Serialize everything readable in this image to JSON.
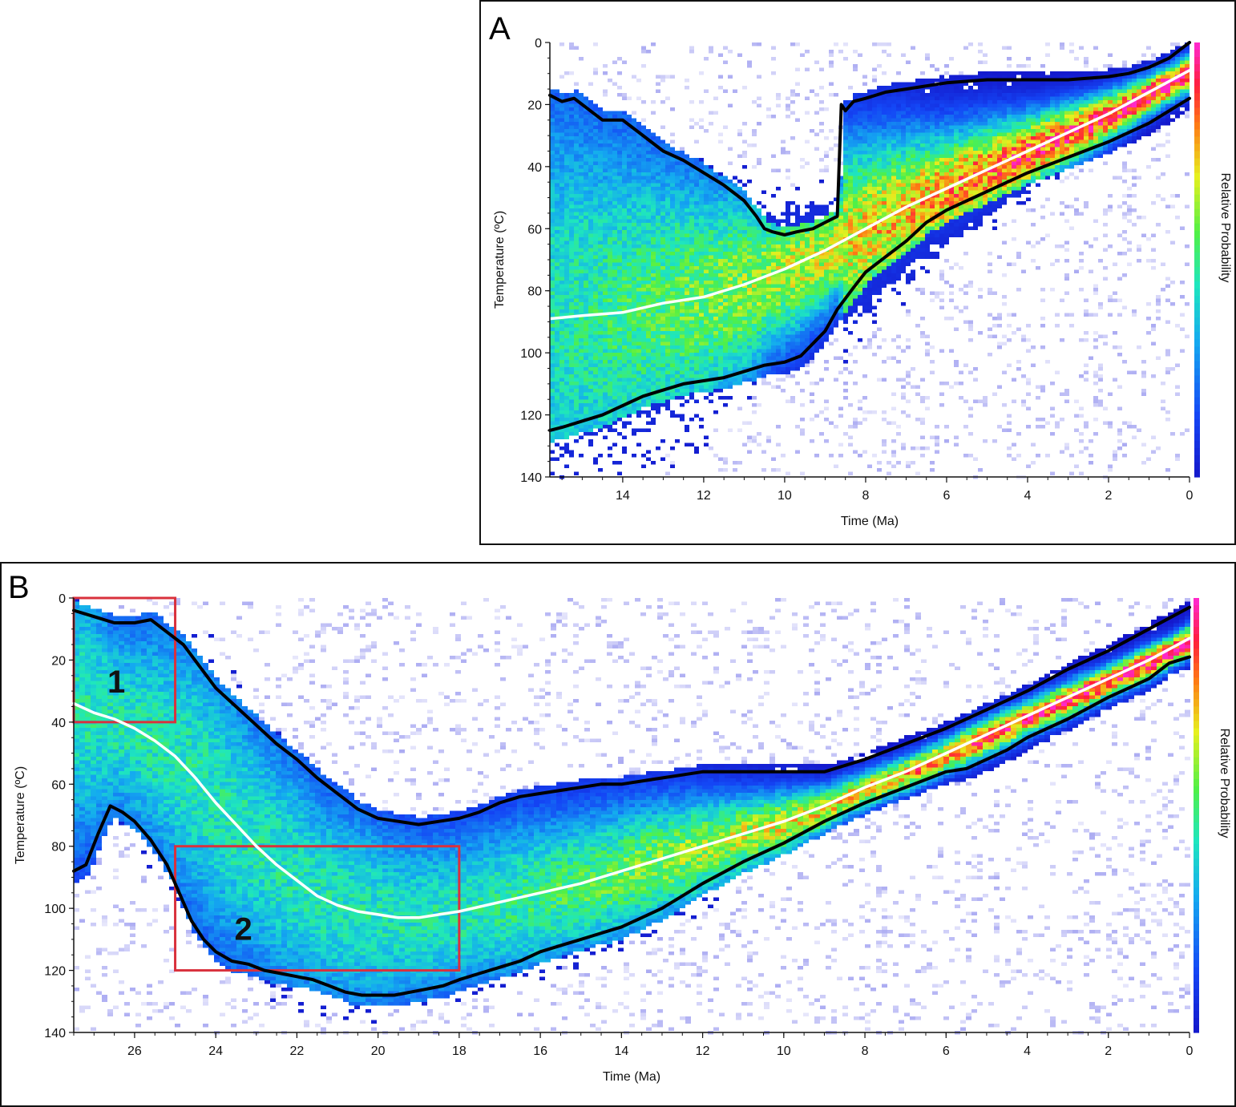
{
  "chart_data": [
    {
      "panel_label": "A",
      "type": "heatmap",
      "xlabel": "Time (Ma)",
      "ylabel": "Temperature (ºC)",
      "colorbar_label": "Relative Probability",
      "xlim": [
        15.8,
        0
      ],
      "ylim": [
        0,
        140
      ],
      "x_ticks": [
        14,
        12,
        10,
        8,
        6,
        4,
        2,
        0
      ],
      "y_ticks": [
        0,
        20,
        40,
        60,
        80,
        100,
        120,
        140
      ],
      "x_tick_labels": [
        "14",
        "12",
        "10",
        "8",
        "6",
        "4",
        "2",
        "0"
      ],
      "y_tick_labels": [
        "0",
        "20",
        "40",
        "60",
        "80",
        "100",
        "120",
        "140"
      ],
      "series": [
        {
          "name": "upper envelope",
          "color": "#000000",
          "x": [
            15.8,
            15.5,
            15.2,
            14.8,
            14.5,
            14.0,
            13.5,
            13.0,
            12.5,
            12.0,
            11.5,
            11.0,
            10.7,
            10.5,
            10.3,
            10.0,
            9.7,
            9.3,
            9.0,
            8.7,
            8.6,
            8.5,
            8.3,
            8.0,
            7.5,
            7.0,
            6.5,
            6.0,
            5.0,
            4.0,
            3.0,
            2.0,
            1.5,
            1.0,
            0.5,
            0.2,
            0
          ],
          "y": [
            17,
            19,
            18,
            22,
            25,
            25,
            30,
            35,
            38,
            42,
            46,
            51,
            56,
            60,
            61,
            62,
            61,
            60,
            58,
            56,
            20,
            22,
            19,
            18,
            16,
            15,
            14,
            13,
            12,
            12,
            12,
            11,
            10,
            8,
            5,
            2,
            0
          ]
        },
        {
          "name": "mean path",
          "color": "#ffffff",
          "x": [
            15.8,
            15.0,
            14.0,
            13.0,
            12.0,
            11.0,
            10.0,
            9.0,
            8.0,
            7.0,
            6.0,
            5.0,
            4.0,
            3.0,
            2.0,
            1.0,
            0
          ],
          "y": [
            89,
            88,
            87,
            84,
            82,
            78,
            73,
            67,
            60,
            53,
            47,
            41,
            35,
            29,
            23,
            16,
            9
          ]
        },
        {
          "name": "lower envelope",
          "color": "#000000",
          "x": [
            15.8,
            15.5,
            15.0,
            14.5,
            14.0,
            13.5,
            13.0,
            12.5,
            12.0,
            11.5,
            11.0,
            10.5,
            10.0,
            9.6,
            9.3,
            9.0,
            8.7,
            8.3,
            8.0,
            7.5,
            7.0,
            6.5,
            6.0,
            5.5,
            5.0,
            4.5,
            4.0,
            3.0,
            2.0,
            1.0,
            0.5,
            0
          ],
          "y": [
            125,
            124,
            122,
            120,
            117,
            114,
            112,
            110,
            109,
            108,
            106,
            104,
            103,
            101,
            97,
            93,
            86,
            79,
            74,
            69,
            64,
            58,
            54,
            51,
            48,
            45,
            42,
            37,
            32,
            26,
            22,
            18
          ]
        }
      ]
    },
    {
      "panel_label": "B",
      "type": "heatmap",
      "xlabel": "Time (Ma)",
      "ylabel": "Temperature (ºC)",
      "colorbar_label": "Relative Probability",
      "xlim": [
        27.5,
        0
      ],
      "ylim": [
        0,
        140
      ],
      "x_ticks": [
        26,
        24,
        22,
        20,
        18,
        16,
        14,
        12,
        10,
        8,
        6,
        4,
        2,
        0
      ],
      "y_ticks": [
        0,
        20,
        40,
        60,
        80,
        100,
        120,
        140
      ],
      "x_tick_labels": [
        "26",
        "24",
        "22",
        "20",
        "18",
        "16",
        "14",
        "12",
        "10",
        "8",
        "6",
        "4",
        "2",
        "0"
      ],
      "y_tick_labels": [
        "0",
        "20",
        "40",
        "60",
        "80",
        "100",
        "120",
        "140"
      ],
      "boxes": [
        {
          "label": "1",
          "t_start": 27.5,
          "t_end": 25,
          "temp_min": 0,
          "temp_max": 40
        },
        {
          "label": "2",
          "t_start": 25,
          "t_end": 18,
          "temp_min": 80,
          "temp_max": 120
        }
      ],
      "series": [
        {
          "name": "upper envelope",
          "color": "#000000",
          "x": [
            27.5,
            27.0,
            26.5,
            26.0,
            25.6,
            25.2,
            24.8,
            24.4,
            24.0,
            23.5,
            23.0,
            22.5,
            22.0,
            21.5,
            21.0,
            20.5,
            20.0,
            19.5,
            19.0,
            18.5,
            18.0,
            17.5,
            17.0,
            16.5,
            16.0,
            15.5,
            15.0,
            14.5,
            14.0,
            13.5,
            13.0,
            12.5,
            12.0,
            11.0,
            10.0,
            9.0,
            8.0,
            7.0,
            6.0,
            5.0,
            4.0,
            3.0,
            2.0,
            1.0,
            0
          ],
          "y": [
            4,
            6,
            8,
            8,
            7,
            11,
            15,
            22,
            29,
            35,
            41,
            47,
            52,
            58,
            63,
            68,
            71,
            72,
            73,
            72,
            71,
            69,
            66,
            64,
            63,
            62,
            61,
            60,
            60,
            59,
            58,
            57,
            56,
            56,
            56,
            56,
            52,
            47,
            42,
            36,
            30,
            23,
            17,
            10,
            3
          ]
        },
        {
          "name": "mean path",
          "color": "#ffffff",
          "x": [
            27.5,
            27.0,
            26.5,
            26.0,
            25.5,
            25.0,
            24.5,
            24.0,
            23.5,
            23.0,
            22.5,
            22.0,
            21.5,
            21.0,
            20.5,
            20.0,
            19.5,
            19.0,
            18.5,
            18.0,
            17.0,
            16.0,
            15.0,
            14.0,
            13.0,
            12.0,
            11.0,
            10.0,
            9.0,
            8.0,
            7.0,
            6.0,
            5.0,
            4.0,
            3.0,
            2.0,
            1.0,
            0
          ],
          "y": [
            34,
            37,
            39,
            42,
            46,
            51,
            58,
            66,
            73,
            80,
            86,
            91,
            96,
            99,
            101,
            102,
            103,
            103,
            102,
            101,
            98,
            95,
            92,
            88,
            84,
            80,
            76,
            72,
            67,
            61,
            56,
            50,
            44,
            38,
            32,
            26,
            20,
            13
          ]
        },
        {
          "name": "lower envelope",
          "color": "#000000",
          "x": [
            27.5,
            27.2,
            26.9,
            26.6,
            26.3,
            26.0,
            25.6,
            25.2,
            24.9,
            24.6,
            24.3,
            24.0,
            23.6,
            23.2,
            22.8,
            22.4,
            22.0,
            21.6,
            21.2,
            20.8,
            20.4,
            20.0,
            19.6,
            19.2,
            18.8,
            18.4,
            18.0,
            17.5,
            17.0,
            16.5,
            16.0,
            15.5,
            15.0,
            14.5,
            14.0,
            13.5,
            13.0,
            12.5,
            12.0,
            11.0,
            10.0,
            9.0,
            8.0,
            7.0,
            6.0,
            5.5,
            5.0,
            4.5,
            4.0,
            3.0,
            2.0,
            1.0,
            0.5,
            0
          ],
          "y": [
            88,
            86,
            76,
            67,
            69,
            72,
            78,
            86,
            95,
            104,
            110,
            114,
            117,
            118,
            120,
            121,
            122,
            123,
            125,
            127,
            128,
            128,
            128,
            127,
            126,
            125,
            123,
            121,
            119,
            117,
            114,
            112,
            110,
            108,
            106,
            103,
            100,
            96,
            92,
            85,
            79,
            72,
            66,
            61,
            56,
            55,
            52,
            49,
            45,
            39,
            32,
            26,
            21,
            19
          ]
        }
      ]
    }
  ]
}
